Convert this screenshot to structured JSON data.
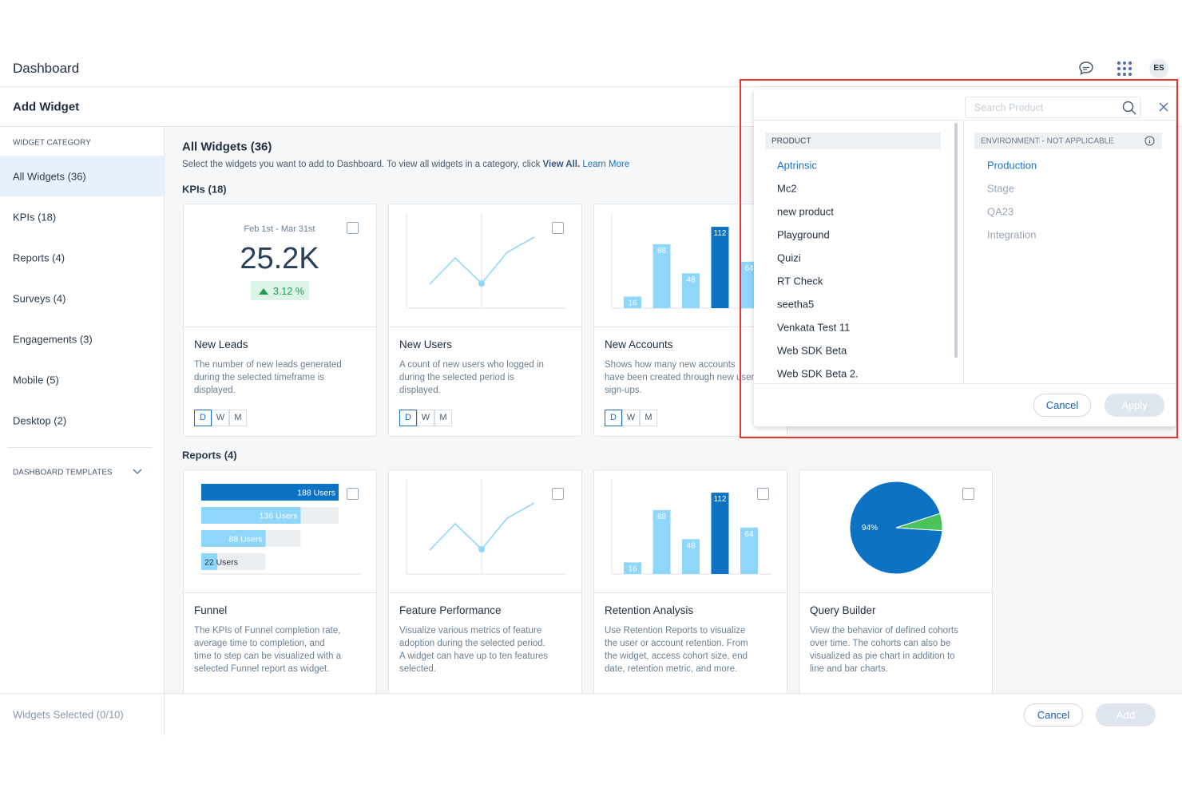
{
  "header": {
    "title": "Dashboard",
    "avatar": "ES"
  },
  "subheader": {
    "title": "Add Widget"
  },
  "sidebar": {
    "heading": "WIDGET CATEGORY",
    "items": [
      "All Widgets (36)",
      "KPIs (18)",
      "Reports (4)",
      "Surveys (4)",
      "Engagements (3)",
      "Mobile (5)",
      "Desktop (2)"
    ],
    "templates": "DASHBOARD TEMPLATES"
  },
  "main": {
    "title": "All Widgets (36)",
    "intro": "Select the widgets you want to add to Dashboard. To view all widgets in a category, click",
    "view_all": "View All.",
    "learn_more": "Learn More",
    "sections": [
      {
        "title": "KPIs (18)",
        "cards": [
          {
            "title": "New Leads",
            "desc": "The number of new leads generated during the selected timeframe is displayed.",
            "preview": {
              "type": "kpi",
              "period": "Feb 1st - Mar 31st",
              "value": "25.2K",
              "change": "3.12 %"
            },
            "periods": [
              "D",
              "W",
              "M"
            ]
          },
          {
            "title": "New Users",
            "desc": "A count of new users who logged in during the selected period is displayed.",
            "preview": {
              "type": "line"
            },
            "periods": [
              "D",
              "W",
              "M"
            ]
          },
          {
            "title": "New Accounts",
            "desc": "Shows how many new accounts have been created through new user sign-ups.",
            "preview": {
              "type": "bar",
              "values": [
                16,
                88,
                48,
                112,
                64
              ],
              "colors": [
                "#8fd6fb",
                "#8fd6fb",
                "#8fd6fb",
                "#0b72c4",
                "#8fd6fb"
              ]
            },
            "periods": [
              "D",
              "W",
              "M"
            ]
          }
        ]
      },
      {
        "title": "Reports (4)",
        "cards": [
          {
            "title": "Funnel",
            "desc": "The KPIs of Funnel completion rate, average time to completion, and time to step can be visualized with a selected Funnel report as widget.",
            "preview": {
              "type": "funnel",
              "values": [
                188,
                136,
                88,
                22
              ],
              "value_labels": [
                "188 Users",
                "136 Users",
                "88 Users",
                "22 Users"
              ],
              "colors": [
                "#0b72c4",
                "#8fd6fb",
                "#8fd6fb",
                "#8fd6fb"
              ]
            }
          },
          {
            "title": "Feature Performance",
            "desc": "Visualize various metrics of feature adoption during the selected period. A widget can have up to ten features selected.",
            "preview": {
              "type": "line"
            }
          },
          {
            "title": "Retention Analysis",
            "desc": "Use Retention Reports to visualize the user or account retention. From the widget, access cohort size, end date, retention metric, and more.",
            "preview": {
              "type": "bar",
              "values": [
                16,
                88,
                48,
                112,
                64
              ],
              "colors": [
                "#8fd6fb",
                "#8fd6fb",
                "#8fd6fb",
                "#0b72c4",
                "#8fd6fb"
              ]
            }
          },
          {
            "title": "Query Builder",
            "desc": "View the behavior of defined cohorts over time. The cohorts can also be visualized as pie chart in addition to line and bar charts.",
            "preview": {
              "type": "pie",
              "values": [
                94,
                6
              ],
              "value_labels": [
                "94%",
                null
              ],
              "colors": [
                "#0b72c4",
                "#4cc25a"
              ]
            }
          }
        ]
      }
    ]
  },
  "dropdown": {
    "search_placeholder": "Search Product",
    "product_heading": "PRODUCT",
    "products": [
      "Aptrinsic",
      "Mc2",
      "new product",
      "Playground",
      "Quizi",
      "RT Check",
      "seetha5",
      "Venkata Test 11",
      "Web SDK Beta",
      "Web SDK Beta 2."
    ],
    "env_heading": "ENVIRONMENT - NOT APPLICABLE",
    "environments": [
      "Production",
      "Stage",
      "QA23",
      "Integration"
    ],
    "cancel": "Cancel",
    "apply": "Apply"
  },
  "footer": {
    "selected": "Widgets Selected (0/10)",
    "cancel": "Cancel",
    "add": "Add"
  }
}
